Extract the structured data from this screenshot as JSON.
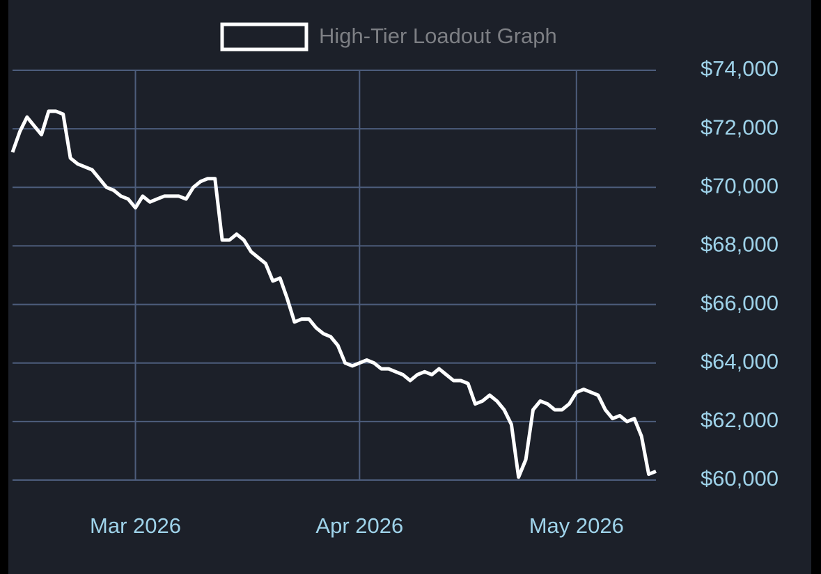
{
  "chart_data": {
    "type": "line",
    "categories": [
      null,
      null,
      null,
      null,
      null,
      null,
      null,
      null,
      null,
      null,
      null,
      null,
      null,
      null,
      null,
      null,
      null,
      "Mar 2026",
      null,
      null,
      null,
      null,
      null,
      null,
      null,
      null,
      null,
      null,
      null,
      null,
      null,
      null,
      null,
      null,
      null,
      null,
      null,
      null,
      null,
      null,
      null,
      null,
      null,
      null,
      null,
      null,
      null,
      null,
      "Apr 2026",
      null,
      null,
      null,
      null,
      null,
      null,
      null,
      null,
      null,
      null,
      null,
      null,
      null,
      null,
      null,
      null,
      null,
      null,
      null,
      null,
      null,
      null,
      null,
      null,
      null,
      null,
      null,
      null,
      null,
      "May 2026",
      null,
      null,
      null,
      null,
      null,
      null,
      null,
      null,
      null,
      null,
      null
    ],
    "series": [
      {
        "name": "High-Tier Loadout Graph",
        "color": "#ffffff",
        "values": [
          71200,
          71900,
          72400,
          72100,
          71800,
          72600,
          72600,
          72500,
          71000,
          70800,
          70700,
          70600,
          70300,
          70000,
          69900,
          69700,
          69600,
          69300,
          69700,
          69500,
          69600,
          69700,
          69700,
          69700,
          69600,
          70000,
          70200,
          70300,
          70300,
          68200,
          68200,
          68400,
          68200,
          67800,
          67600,
          67400,
          66800,
          66900,
          66200,
          65400,
          65500,
          65500,
          65200,
          65000,
          64900,
          64600,
          64000,
          63900,
          64000,
          64100,
          64000,
          63800,
          63800,
          63700,
          63600,
          63400,
          63600,
          63700,
          63600,
          63800,
          63600,
          63400,
          63400,
          63300,
          62600,
          62700,
          62900,
          62700,
          62400,
          61900,
          60100,
          60700,
          62400,
          62700,
          62600,
          62400,
          62400,
          62600,
          63000,
          63100,
          63000,
          62900,
          62400,
          62100,
          62200,
          62000,
          62100,
          61500,
          60200,
          60300
        ]
      }
    ],
    "ylim": [
      60000,
      74000
    ],
    "yticks": [
      {
        "value": 60000,
        "label": "$60,000"
      },
      {
        "value": 62000,
        "label": "$62,000"
      },
      {
        "value": 64000,
        "label": "$64,000"
      },
      {
        "value": 66000,
        "label": "$66,000"
      },
      {
        "value": 68000,
        "label": "$68,000"
      },
      {
        "value": 70000,
        "label": "$70,000"
      },
      {
        "value": 72000,
        "label": "$72,000"
      },
      {
        "value": 74000,
        "label": "$74,000"
      }
    ],
    "grid": true
  }
}
